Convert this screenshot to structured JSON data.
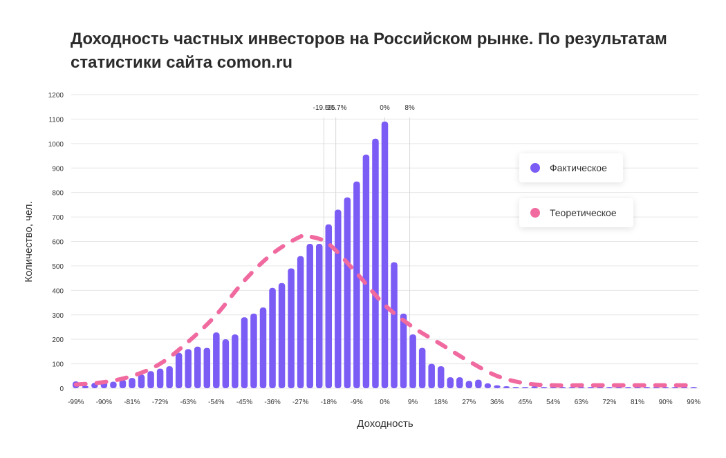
{
  "title": "Доходность частных инвесторов на Российском рынке. По результатам статистики сайта comon.ru",
  "legend": {
    "actual_label": "Фактическое",
    "theoretical_label": "Теоретическое"
  },
  "colors": {
    "actual": "#7b5cf5",
    "theoretical": "#f06aa0",
    "grid": "#e6e6e6",
    "refline": "#d8d8d8"
  },
  "chart_data": {
    "type": "bar",
    "xlabel": "Доходность",
    "ylabel": "Количество, чел.",
    "ylim": [
      0,
      1200
    ],
    "yticks": [
      "0",
      "100",
      "200",
      "300",
      "400",
      "500",
      "600",
      "700",
      "800",
      "900",
      "1000",
      "1100",
      "1200"
    ],
    "x": [
      -99,
      -96,
      -93,
      -90,
      -87,
      -84,
      -81,
      -78,
      -75,
      -72,
      -69,
      -66,
      -63,
      -60,
      -57,
      -54,
      -51,
      -48,
      -45,
      -42,
      -39,
      -36,
      -33,
      -30,
      -27,
      -24,
      -21,
      -18,
      -15,
      -12,
      -9,
      -6,
      -3,
      0,
      3,
      6,
      9,
      12,
      15,
      18,
      21,
      24,
      27,
      30,
      33,
      36,
      39,
      42,
      45,
      48,
      51,
      54,
      57,
      60,
      63,
      66,
      69,
      72,
      75,
      78,
      81,
      84,
      87,
      90,
      93,
      96,
      99
    ],
    "xtick_labels": [
      "-99%",
      "-90%",
      "-81%",
      "-72%",
      "-63%",
      "-54%",
      "-45%",
      "-36%",
      "-27%",
      "-18%",
      "-9%",
      "0%",
      "9%",
      "18%",
      "27%",
      "36%",
      "45%",
      "54%",
      "63%",
      "72%",
      "81%",
      "90%",
      "99%"
    ],
    "xtick_values": [
      -99,
      -90,
      -81,
      -72,
      -63,
      -54,
      -45,
      -36,
      -27,
      -18,
      -9,
      0,
      9,
      18,
      27,
      36,
      45,
      54,
      63,
      72,
      81,
      90,
      99
    ],
    "series": [
      {
        "name": "Фактическое",
        "values": [
          28,
          10,
          22,
          30,
          27,
          35,
          42,
          56,
          70,
          80,
          90,
          145,
          160,
          170,
          165,
          228,
          200,
          220,
          290,
          305,
          330,
          410,
          430,
          490,
          540,
          590,
          590,
          670,
          730,
          780,
          845,
          955,
          1020,
          1090,
          515,
          305,
          220,
          165,
          100,
          90,
          45,
          45,
          30,
          35,
          20,
          12,
          8,
          5,
          5,
          8,
          5,
          5,
          5,
          5,
          5,
          5,
          5,
          5,
          5,
          5,
          5,
          5,
          5,
          5,
          5,
          5,
          5
        ]
      },
      {
        "name": "Теоретическое",
        "x": [
          -99,
          -90,
          -81,
          -72,
          -63,
          -54,
          -45,
          -36,
          -27,
          -24,
          -18,
          -9,
          0,
          9,
          18,
          27,
          36,
          45,
          54,
          63,
          72,
          81,
          90,
          99
        ],
        "values": [
          15,
          25,
          50,
          100,
          190,
          300,
          440,
          550,
          620,
          620,
          590,
          470,
          340,
          250,
          180,
          110,
          50,
          20,
          12,
          12,
          12,
          12,
          12,
          12
        ]
      }
    ],
    "reference_lines": [
      {
        "label": "-19.5%",
        "x": -19.5
      },
      {
        "label": "-15.7%",
        "x": -15.7
      },
      {
        "label": "0%",
        "x": 0
      },
      {
        "label": "8%",
        "x": 8
      }
    ]
  }
}
